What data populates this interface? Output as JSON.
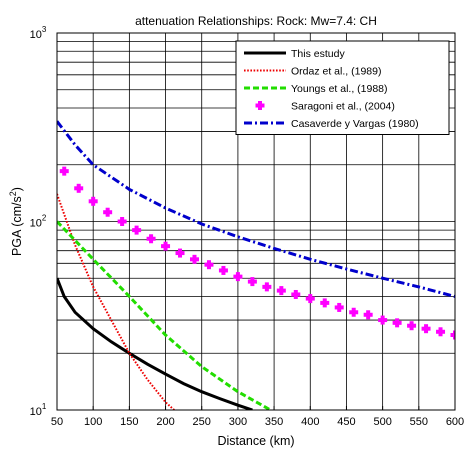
{
  "chart_data": {
    "type": "line",
    "title": "attenuation Relationships: Rock: Mw=7.4: CH",
    "xlabel": "Distance (km)",
    "ylabel_parts": [
      "PGA  (cm/s",
      "2",
      ")"
    ],
    "xlim": [
      50,
      600
    ],
    "ylim": [
      10,
      1000
    ],
    "yscale": "log",
    "grid": true,
    "legend_position": "top-right",
    "x_ticks": [
      50,
      100,
      150,
      200,
      250,
      300,
      350,
      400,
      450,
      500,
      550,
      600
    ],
    "x_tick_labels": [
      "50",
      "100",
      "150",
      "200",
      "250",
      "300",
      "350",
      "400",
      "450",
      "500",
      "550",
      "600"
    ],
    "y_ticks": [
      {
        "value": 10,
        "base": "10",
        "exp": "1"
      },
      {
        "value": 100,
        "base": "10",
        "exp": "2"
      },
      {
        "value": 1000,
        "base": "10",
        "exp": "3"
      }
    ],
    "series": [
      {
        "name": "This estudy",
        "color": "#000000",
        "style": "solid",
        "x": [
          50,
          60,
          75,
          100,
          125,
          150,
          175,
          200,
          225,
          250,
          275,
          300,
          320
        ],
        "y": [
          50,
          40,
          33,
          27,
          23,
          20,
          17.5,
          15.5,
          13.8,
          12.5,
          11.5,
          10.6,
          10.0
        ]
      },
      {
        "name": "Ordaz et al., (1989)",
        "color": "#ee0000",
        "style": "dotted",
        "x": [
          50,
          75,
          100,
          125,
          150,
          175,
          200,
          212
        ],
        "y": [
          140,
          75,
          45,
          30,
          20,
          14.5,
          11,
          10
        ]
      },
      {
        "name": "Youngs et al., (1988)",
        "color": "#22dd00",
        "style": "dashed",
        "x": [
          50,
          100,
          150,
          200,
          250,
          300,
          345
        ],
        "y": [
          100,
          63,
          40,
          25,
          17,
          12.5,
          10
        ]
      },
      {
        "name": "Saragoni et al., (2004)",
        "color": "#ff00ff",
        "style": "markers",
        "x": [
          60,
          80,
          100,
          120,
          140,
          160,
          180,
          200,
          220,
          240,
          260,
          280,
          300,
          320,
          340,
          360,
          380,
          400,
          420,
          440,
          460,
          480,
          500,
          520,
          540,
          560,
          580,
          600
        ],
        "y": [
          185,
          150,
          128,
          112,
          100,
          90,
          81,
          74,
          68,
          63,
          59,
          55,
          51,
          48,
          45,
          43,
          41,
          39,
          37,
          35,
          33,
          32,
          30,
          29,
          28,
          27,
          26,
          25
        ]
      },
      {
        "name": "Casaverde y Vargas (1980)",
        "color": "#0000cc",
        "style": "dashdot",
        "x": [
          50,
          75,
          100,
          150,
          200,
          250,
          300,
          350,
          400,
          450,
          500,
          550,
          600
        ],
        "y": [
          340,
          255,
          200,
          148,
          118,
          97,
          83,
          72,
          63,
          56,
          50,
          45,
          40
        ]
      }
    ]
  }
}
